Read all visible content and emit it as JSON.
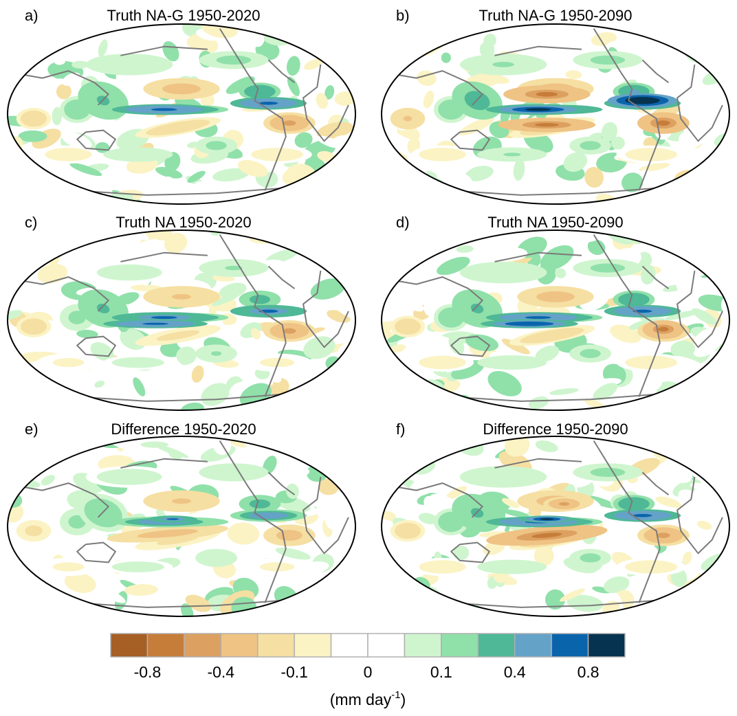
{
  "chart_data": {
    "type": "heatmap",
    "description_free": true,
    "panels": [
      {
        "label": "a)",
        "title": "Truth NA-G 1950-2020",
        "scenario": "NA-G",
        "period": "1950-2020"
      },
      {
        "label": "b)",
        "title": "Truth NA-G 1950-2090",
        "scenario": "NA-G",
        "period": "1950-2090"
      },
      {
        "label": "c)",
        "title": "Truth NA 1950-2020",
        "scenario": "NA",
        "period": "1950-2020"
      },
      {
        "label": "d)",
        "title": "Truth NA 1950-2090",
        "scenario": "NA",
        "period": "1950-2090"
      },
      {
        "label": "e)",
        "title": "Difference 1950-2020",
        "scenario": "Difference",
        "period": "1950-2020"
      },
      {
        "label": "f)",
        "title": "Difference 1950-2090",
        "scenario": "Difference",
        "period": "1950-2090"
      }
    ],
    "colorbar": {
      "units_prefix": "(mm day",
      "units_exponent": "-1",
      "units_suffix": ")",
      "colors": [
        "#a65f24",
        "#c67d3a",
        "#dca061",
        "#efc384",
        "#f5dfa2",
        "#fbf3c4",
        "#ffffff",
        "#ffffff",
        "#cff5cf",
        "#90e0aa",
        "#4fb896",
        "#65a2c8",
        "#0a64ac",
        "#06334f"
      ],
      "tick_labels": [
        "-0.8",
        "-0.4",
        "-0.1",
        "0",
        "0.1",
        "0.4",
        "0.8"
      ],
      "tick_boundaries": [
        1,
        3,
        5,
        7,
        9,
        11,
        13
      ]
    }
  }
}
